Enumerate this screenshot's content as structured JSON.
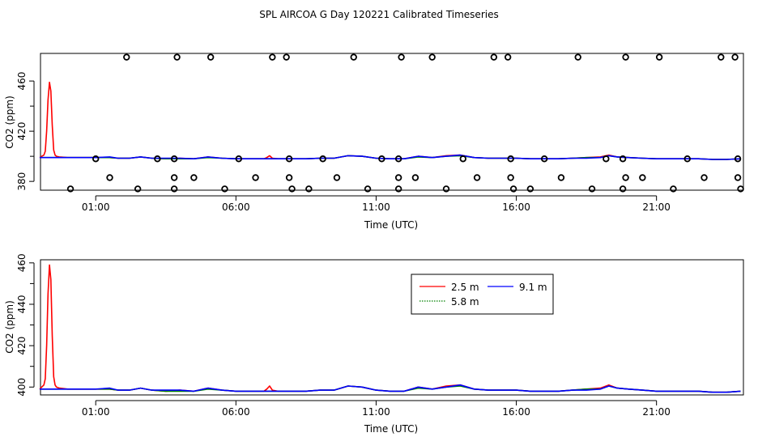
{
  "title": "SPL AIRCOA G  Day 120221  Calibrated Timeseries",
  "colors": {
    "s25": "#ff0000",
    "s58": "#008000",
    "s91": "#0000ff",
    "axis": "#000000",
    "marker": "#000000"
  },
  "chart_data": [
    {
      "type": "line",
      "panel": "top",
      "xlabel": "Time (UTC)",
      "ylabel": "CO2 (ppm)",
      "xlim": [
        -0.97,
        24.1
      ],
      "ylim": [
        373,
        482
      ],
      "x_tick_values": [
        1,
        6,
        11,
        16,
        21
      ],
      "x_tick_labels": [
        "01:00",
        "06:00",
        "11:00",
        "16:00",
        "21:00"
      ],
      "y_tick_values": [
        380,
        420,
        460
      ],
      "y_tick_labels": [
        "380",
        "420",
        "460"
      ],
      "overlay_markers": [
        {
          "x": 0.1,
          "y": 374
        },
        {
          "x": 1.0,
          "y": 398
        },
        {
          "x": 1.5,
          "y": 383
        },
        {
          "x": 2.1,
          "y": 479
        },
        {
          "x": 2.5,
          "y": 374
        },
        {
          "x": 3.2,
          "y": 398
        },
        {
          "x": 3.8,
          "y": 374
        },
        {
          "x": 3.8,
          "y": 383
        },
        {
          "x": 3.8,
          "y": 398
        },
        {
          "x": 3.9,
          "y": 479
        },
        {
          "x": 4.5,
          "y": 383
        },
        {
          "x": 5.1,
          "y": 479
        },
        {
          "x": 5.6,
          "y": 374
        },
        {
          "x": 6.1,
          "y": 398
        },
        {
          "x": 6.7,
          "y": 383
        },
        {
          "x": 7.3,
          "y": 479
        },
        {
          "x": 7.8,
          "y": 479
        },
        {
          "x": 7.9,
          "y": 383
        },
        {
          "x": 7.9,
          "y": 398
        },
        {
          "x": 8.0,
          "y": 374
        },
        {
          "x": 8.6,
          "y": 374
        },
        {
          "x": 9.1,
          "y": 398
        },
        {
          "x": 9.6,
          "y": 383
        },
        {
          "x": 10.2,
          "y": 479
        },
        {
          "x": 10.7,
          "y": 374
        },
        {
          "x": 11.2,
          "y": 398
        },
        {
          "x": 11.8,
          "y": 374
        },
        {
          "x": 11.8,
          "y": 383
        },
        {
          "x": 11.8,
          "y": 398
        },
        {
          "x": 11.9,
          "y": 479
        },
        {
          "x": 12.4,
          "y": 383
        },
        {
          "x": 13.0,
          "y": 479
        },
        {
          "x": 13.5,
          "y": 374
        },
        {
          "x": 14.1,
          "y": 398
        },
        {
          "x": 14.6,
          "y": 383
        },
        {
          "x": 15.2,
          "y": 479
        },
        {
          "x": 15.7,
          "y": 479
        },
        {
          "x": 15.8,
          "y": 383
        },
        {
          "x": 15.8,
          "y": 398
        },
        {
          "x": 15.9,
          "y": 374
        },
        {
          "x": 16.5,
          "y": 374
        },
        {
          "x": 17.0,
          "y": 398
        },
        {
          "x": 17.6,
          "y": 383
        },
        {
          "x": 18.2,
          "y": 479
        },
        {
          "x": 18.7,
          "y": 374
        },
        {
          "x": 19.2,
          "y": 398
        },
        {
          "x": 19.8,
          "y": 374
        },
        {
          "x": 19.8,
          "y": 398
        },
        {
          "x": 19.9,
          "y": 383
        },
        {
          "x": 19.9,
          "y": 479
        },
        {
          "x": 20.5,
          "y": 383
        },
        {
          "x": 21.1,
          "y": 479
        },
        {
          "x": 21.6,
          "y": 374
        },
        {
          "x": 22.1,
          "y": 398
        },
        {
          "x": 22.7,
          "y": 383
        },
        {
          "x": 23.3,
          "y": 479
        },
        {
          "x": 23.8,
          "y": 479
        },
        {
          "x": 23.9,
          "y": 383
        },
        {
          "x": 23.9,
          "y": 398
        },
        {
          "x": 24.0,
          "y": 374
        }
      ]
    },
    {
      "type": "line",
      "panel": "bottom",
      "xlabel": "Time (UTC)",
      "ylabel": "CO2 (ppm)",
      "xlim": [
        -0.97,
        24.1
      ],
      "ylim": [
        396.2,
        461.5
      ],
      "x_tick_values": [
        1,
        6,
        11,
        16,
        21
      ],
      "x_tick_labels": [
        "01:00",
        "06:00",
        "11:00",
        "16:00",
        "21:00"
      ],
      "y_tick_values": [
        400,
        420,
        440,
        460
      ],
      "y_tick_labels": [
        "400",
        "420",
        "440",
        "460"
      ],
      "legend": {
        "placement": "top-center",
        "entries": [
          {
            "label": "2.5 m",
            "series": "s25"
          },
          {
            "label": "9.1 m",
            "series": "s91"
          },
          {
            "label": "5.8 m",
            "series": "s58"
          }
        ]
      }
    }
  ],
  "series": [
    {
      "name": "2.5 m",
      "key": "s25",
      "x": [
        -1.0,
        -0.85,
        -0.8,
        -0.75,
        -0.7,
        -0.65,
        -0.6,
        -0.55,
        -0.5,
        -0.45,
        -0.4,
        -0.3,
        0,
        0.5,
        1.0,
        1.5,
        1.8,
        2.2,
        2.6,
        3.0,
        3.5,
        4.0,
        4.5,
        5.0,
        5.5,
        6.0,
        6.5,
        7.0,
        7.1,
        7.2,
        7.3,
        7.5,
        8.0,
        8.5,
        9.0,
        9.5,
        10.0,
        10.5,
        11.0,
        11.5,
        12.0,
        12.5,
        13.0,
        13.5,
        14.0,
        14.5,
        15.0,
        15.5,
        16.0,
        16.5,
        17.0,
        17.5,
        18.0,
        18.5,
        19.0,
        19.3,
        19.6,
        20.0,
        20.5,
        21.0,
        21.5,
        22.0,
        22.5,
        23.0,
        23.5,
        24.0
      ],
      "values": [
        399,
        401,
        404,
        420,
        445,
        459,
        452,
        425,
        405,
        401,
        400,
        399.5,
        399,
        399,
        399,
        399,
        398.5,
        398.5,
        399.5,
        398.5,
        398,
        398.5,
        398,
        399.5,
        398.5,
        398,
        398,
        398,
        399,
        400.5,
        398.5,
        398,
        398,
        398,
        398.5,
        398.5,
        400.5,
        400,
        398.5,
        398,
        398,
        400,
        399,
        400.5,
        401,
        399,
        398.5,
        398.5,
        398.5,
        398,
        398,
        398,
        398.5,
        399,
        399.5,
        401,
        399.5,
        399,
        398.5,
        398,
        398,
        398,
        398,
        397.5,
        397.5,
        398
      ]
    },
    {
      "name": "5.8 m",
      "key": "s58",
      "x": [
        -1.0,
        -0.5,
        0,
        0.5,
        1.0,
        1.5,
        1.8,
        2.2,
        2.6,
        3.0,
        3.5,
        4.0,
        4.5,
        5.0,
        5.5,
        6.0,
        6.5,
        7.0,
        7.5,
        8.0,
        8.5,
        9.0,
        9.5,
        10.0,
        10.5,
        11.0,
        11.5,
        12.0,
        12.5,
        13.0,
        13.5,
        14.0,
        14.5,
        15.0,
        15.5,
        16.0,
        16.5,
        17.0,
        17.5,
        18.0,
        18.5,
        19.0,
        19.3,
        19.6,
        20.0,
        20.5,
        21.0,
        21.5,
        22.0,
        22.5,
        23.0,
        23.5,
        24.0
      ],
      "values": [
        399,
        399,
        399,
        399,
        399,
        399,
        398.5,
        398.5,
        399.5,
        398.5,
        398,
        398,
        398,
        399,
        398.5,
        398,
        398,
        398,
        398,
        398,
        398,
        398.5,
        398.5,
        400.5,
        400,
        398.5,
        398,
        398,
        399.5,
        399,
        400,
        400.5,
        399,
        398.5,
        398.5,
        398.5,
        398,
        398,
        398,
        398.5,
        399,
        399,
        400.5,
        399.5,
        399,
        398.5,
        398,
        398,
        398,
        398,
        397.5,
        397.5,
        398
      ]
    },
    {
      "name": "9.1 m",
      "key": "s91",
      "x": [
        -1.0,
        -0.5,
        0,
        0.5,
        1.0,
        1.5,
        1.8,
        2.2,
        2.6,
        3.0,
        3.5,
        4.0,
        4.5,
        5.0,
        5.5,
        6.0,
        6.5,
        7.0,
        7.5,
        8.0,
        8.5,
        9.0,
        9.5,
        10.0,
        10.5,
        11.0,
        11.5,
        12.0,
        12.5,
        13.0,
        13.5,
        14.0,
        14.5,
        15.0,
        15.5,
        16.0,
        16.5,
        17.0,
        17.5,
        18.0,
        18.5,
        19.0,
        19.3,
        19.6,
        20.0,
        20.5,
        21.0,
        21.5,
        22.0,
        22.5,
        23.0,
        23.5,
        24.0
      ],
      "values": [
        399,
        399,
        399,
        399,
        399,
        399.5,
        398.5,
        398.5,
        399.5,
        398.5,
        398.5,
        398.5,
        398,
        399.5,
        398.5,
        398,
        398,
        398,
        398,
        398,
        398,
        398.5,
        398.5,
        400.5,
        400,
        398.5,
        398,
        398,
        400,
        399,
        400,
        401,
        399,
        398.5,
        398.5,
        398.5,
        398,
        398,
        398,
        398.5,
        398.5,
        399,
        400.5,
        399.5,
        399,
        398.5,
        398,
        398,
        398,
        398,
        397.5,
        397.5,
        398
      ]
    }
  ]
}
